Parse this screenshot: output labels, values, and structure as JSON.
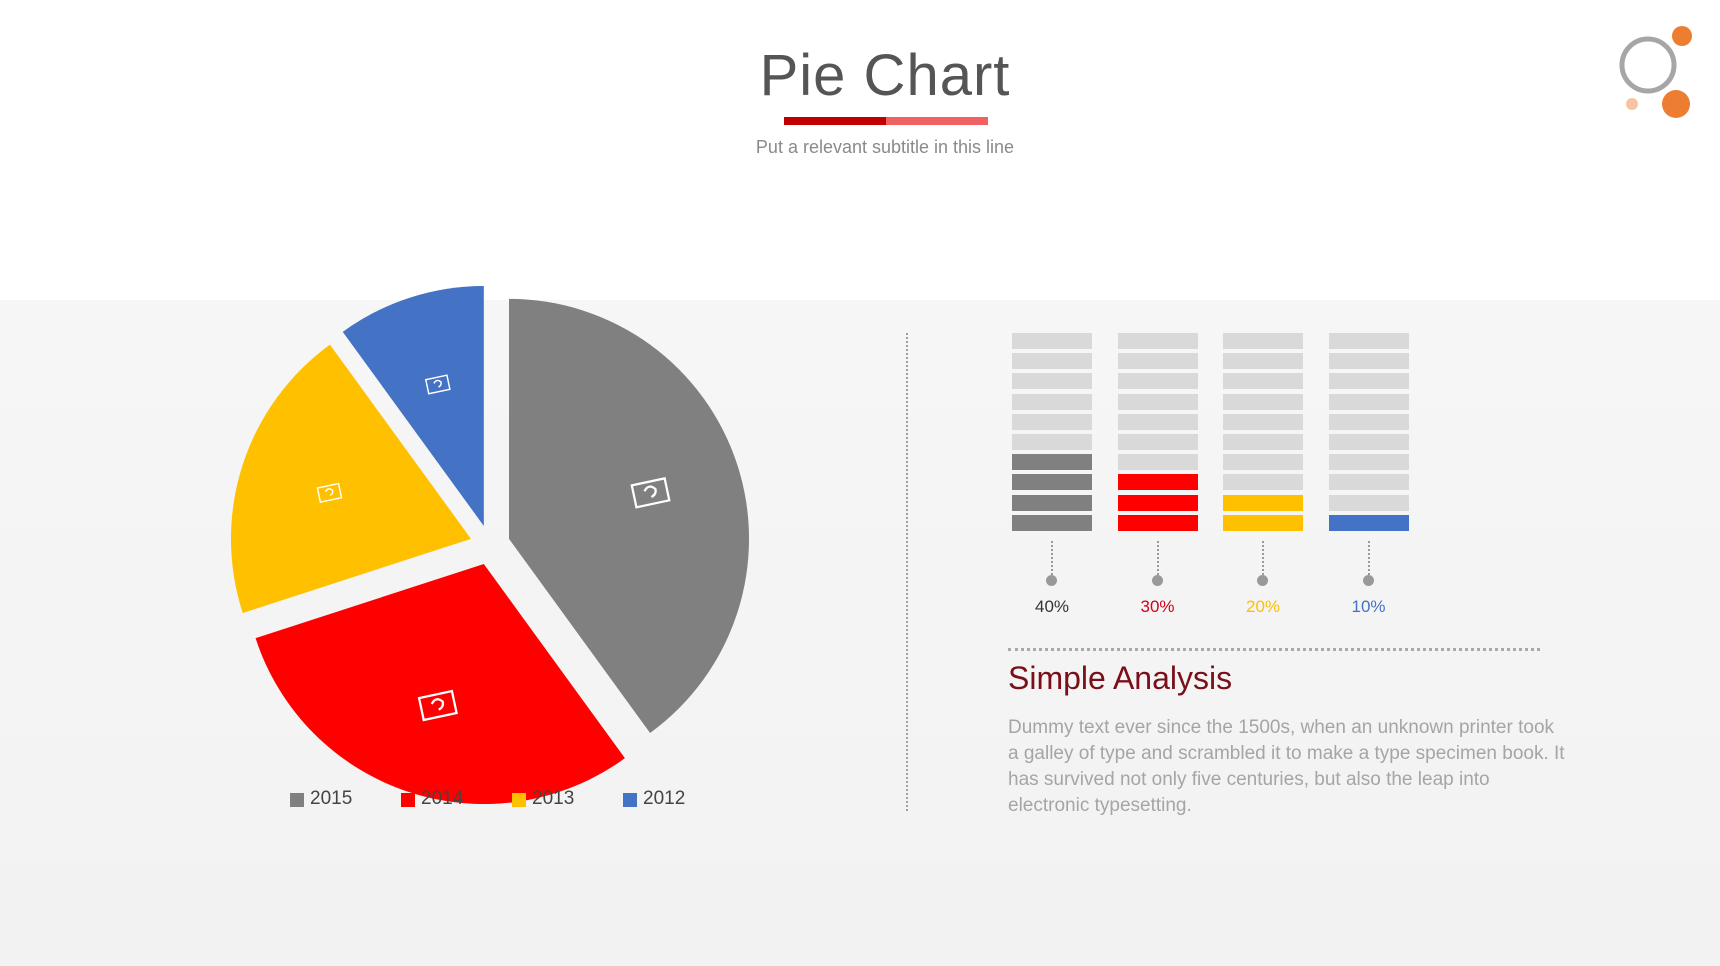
{
  "header": {
    "title": "Pie Chart",
    "subtitle": "Put a relevant subtitle in this line",
    "underline_colors": [
      "#c00000",
      "#f06262"
    ]
  },
  "colors": {
    "gray": "#808080",
    "red": "#ff0000",
    "yellow": "#ffc000",
    "blue": "#4472c4",
    "bar_empty": "#d9d9d9",
    "title_dark": "#7b0f19",
    "logo_ring": "#a6a6a6",
    "logo_orange": "#ed7d31"
  },
  "chart_data": [
    {
      "type": "pie",
      "categories": [
        "2015",
        "2014",
        "2013",
        "2012"
      ],
      "values": [
        40,
        30,
        20,
        10
      ],
      "colors": [
        "#808080",
        "#ff0000",
        "#ffc000",
        "#4472c4"
      ],
      "exploded": true,
      "legend": "bottom",
      "slice_icon": "hand-pointer-icon"
    },
    {
      "type": "bar",
      "categories": [
        "2015",
        "2014",
        "2013",
        "2012"
      ],
      "values": [
        40,
        30,
        20,
        10
      ],
      "labels": [
        "40%",
        "30%",
        "20%",
        "10%"
      ],
      "colors": [
        "#808080",
        "#ff0000",
        "#ffc000",
        "#4472c4"
      ],
      "label_colors": [
        "#333333",
        "#d0021b",
        "#ffc000",
        "#4472c4"
      ],
      "style": "segmented",
      "segments": 10,
      "ylim": [
        0,
        100
      ]
    }
  ],
  "analysis": {
    "title": "Simple Analysis",
    "body": "Dummy text ever since the 1500s, when an unknown printer took a galley of type and scrambled it to make a type specimen book. It has survived not only five centuries, but also the leap into electronic typesetting."
  }
}
